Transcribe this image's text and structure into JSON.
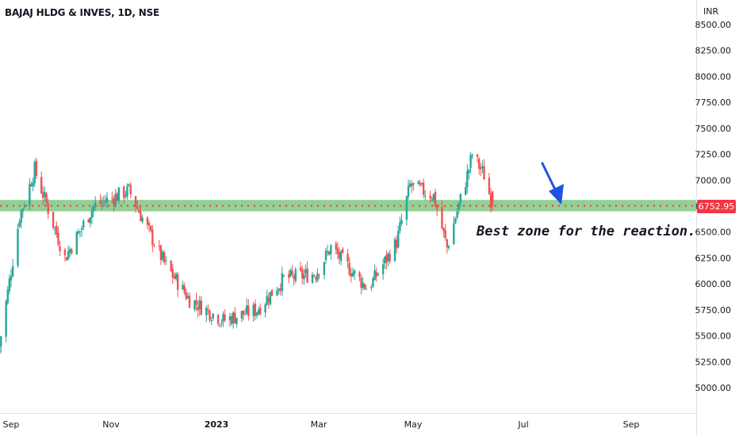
{
  "header": {
    "symbol_title": "BAJAJ HLDG & INVES, 1D, NSE",
    "currency": "INR"
  },
  "annotation": {
    "text": "Best zone for the reaction."
  },
  "last_price_label": "6752.95",
  "colors": {
    "up": "#26a69a",
    "down": "#ef5350",
    "zone_fill": "#81c784",
    "zone_line": "#f23645",
    "arrow": "#1e53e5",
    "axis_text": "#131722"
  },
  "chart_data": {
    "type": "candlestick",
    "y_ticks": [
      "5000.00",
      "5250.00",
      "5500.00",
      "5750.00",
      "6000.00",
      "6250.00",
      "6500.00",
      "6750.00",
      "7000.00",
      "7250.00",
      "7500.00",
      "7750.00",
      "8000.00",
      "8250.00",
      "8500.00"
    ],
    "x_ticks": [
      "Sep",
      "Nov",
      "2023",
      "Mar",
      "May",
      "Jul",
      "Sep"
    ],
    "x_tick_bold": [
      false,
      false,
      true,
      false,
      false,
      false,
      false
    ],
    "ylim": [
      4830,
      8560
    ],
    "zone": {
      "low": 6700,
      "high": 6810,
      "line": 6752.95
    },
    "key_points": [
      {
        "date": "Aug 25",
        "close": 5400
      },
      {
        "date": "Sep 06",
        "close": 6650
      },
      {
        "date": "Sep 15",
        "close": 7100
      },
      {
        "date": "Oct 03",
        "close": 6250
      },
      {
        "date": "Oct 20",
        "close": 6750
      },
      {
        "date": "Nov 10",
        "close": 6900
      },
      {
        "date": "Dec 01",
        "close": 6200
      },
      {
        "date": "Dec 16",
        "close": 5850
      },
      {
        "date": "Jan 05",
        "close": 5650
      },
      {
        "date": "Jan 25",
        "close": 5750
      },
      {
        "date": "Feb 10",
        "close": 6050
      },
      {
        "date": "Mar 01",
        "close": 6100
      },
      {
        "date": "Mar 10",
        "close": 6350
      },
      {
        "date": "Apr 01",
        "close": 5950
      },
      {
        "date": "Apr 18",
        "close": 6400
      },
      {
        "date": "Apr 26",
        "close": 6950
      },
      {
        "date": "May 10",
        "close": 6850
      },
      {
        "date": "May 18",
        "close": 6350
      },
      {
        "date": "May 30",
        "close": 7050
      },
      {
        "date": "Jun 02",
        "close": 7250
      },
      {
        "date": "Jun 09",
        "close": 7050
      },
      {
        "date": "Jun 14",
        "close": 6752.95
      }
    ]
  }
}
